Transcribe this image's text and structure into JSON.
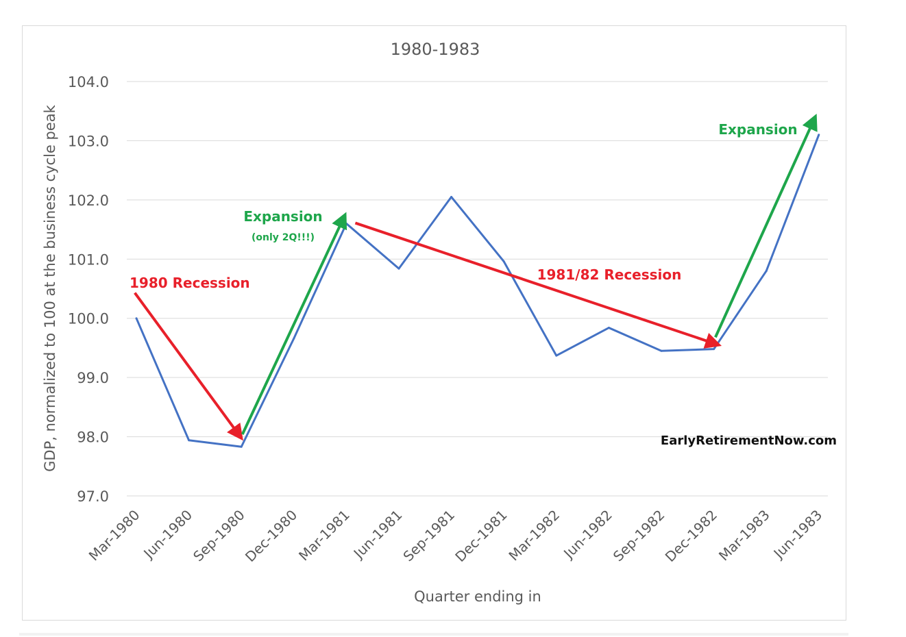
{
  "chart_data": {
    "type": "line",
    "title": "1980-1983",
    "xlabel": "Quarter ending in",
    "ylabel": "GDP, normalized to 100 at the business cycle peak",
    "categories": [
      "Mar-1980",
      "Jun-1980",
      "Sep-1980",
      "Dec-1980",
      "Mar-1981",
      "Jun-1981",
      "Sep-1981",
      "Dec-1981",
      "Mar-1982",
      "Jun-1982",
      "Sep-1982",
      "Dec-1982",
      "Mar-1983",
      "Jun-1983"
    ],
    "series": [
      {
        "values": [
          100.0,
          97.94,
          97.83,
          99.66,
          101.6,
          100.84,
          102.05,
          100.96,
          99.37,
          99.84,
          99.45,
          99.48,
          100.8,
          103.1
        ]
      }
    ],
    "ylim": [
      97.0,
      104.0
    ],
    "yticks": [
      "97.0",
      "98.0",
      "99.0",
      "100.0",
      "101.0",
      "102.0",
      "103.0",
      "104.0"
    ],
    "grid": true,
    "colors": {
      "line": "#4472C4",
      "recession": "#E8202A",
      "expansion": "#1EA64B",
      "grid": "#d9d9d9",
      "axis_text": "#595959"
    },
    "annotations": [
      {
        "id": "rec1980",
        "label": "1980 Recession",
        "color": "recession",
        "from": [
          -0.03,
          100.43
        ],
        "to": [
          1.98,
          98.0
        ]
      },
      {
        "id": "exp1980",
        "label": "Expansion",
        "sublabel": "(only 2Q!!!)",
        "color": "expansion",
        "from": [
          2.02,
          98.04
        ],
        "to": [
          3.96,
          101.72
        ]
      },
      {
        "id": "rec8182",
        "label": "1981/82 Recession",
        "color": "recession",
        "from": [
          4.17,
          101.61
        ],
        "to": [
          11.06,
          99.56
        ]
      },
      {
        "id": "exp1982",
        "label": "Expansion",
        "color": "expansion",
        "from": [
          11.03,
          99.68
        ],
        "to": [
          12.92,
          103.38
        ]
      }
    ],
    "watermark": "EarlyRetirementNow.com"
  }
}
